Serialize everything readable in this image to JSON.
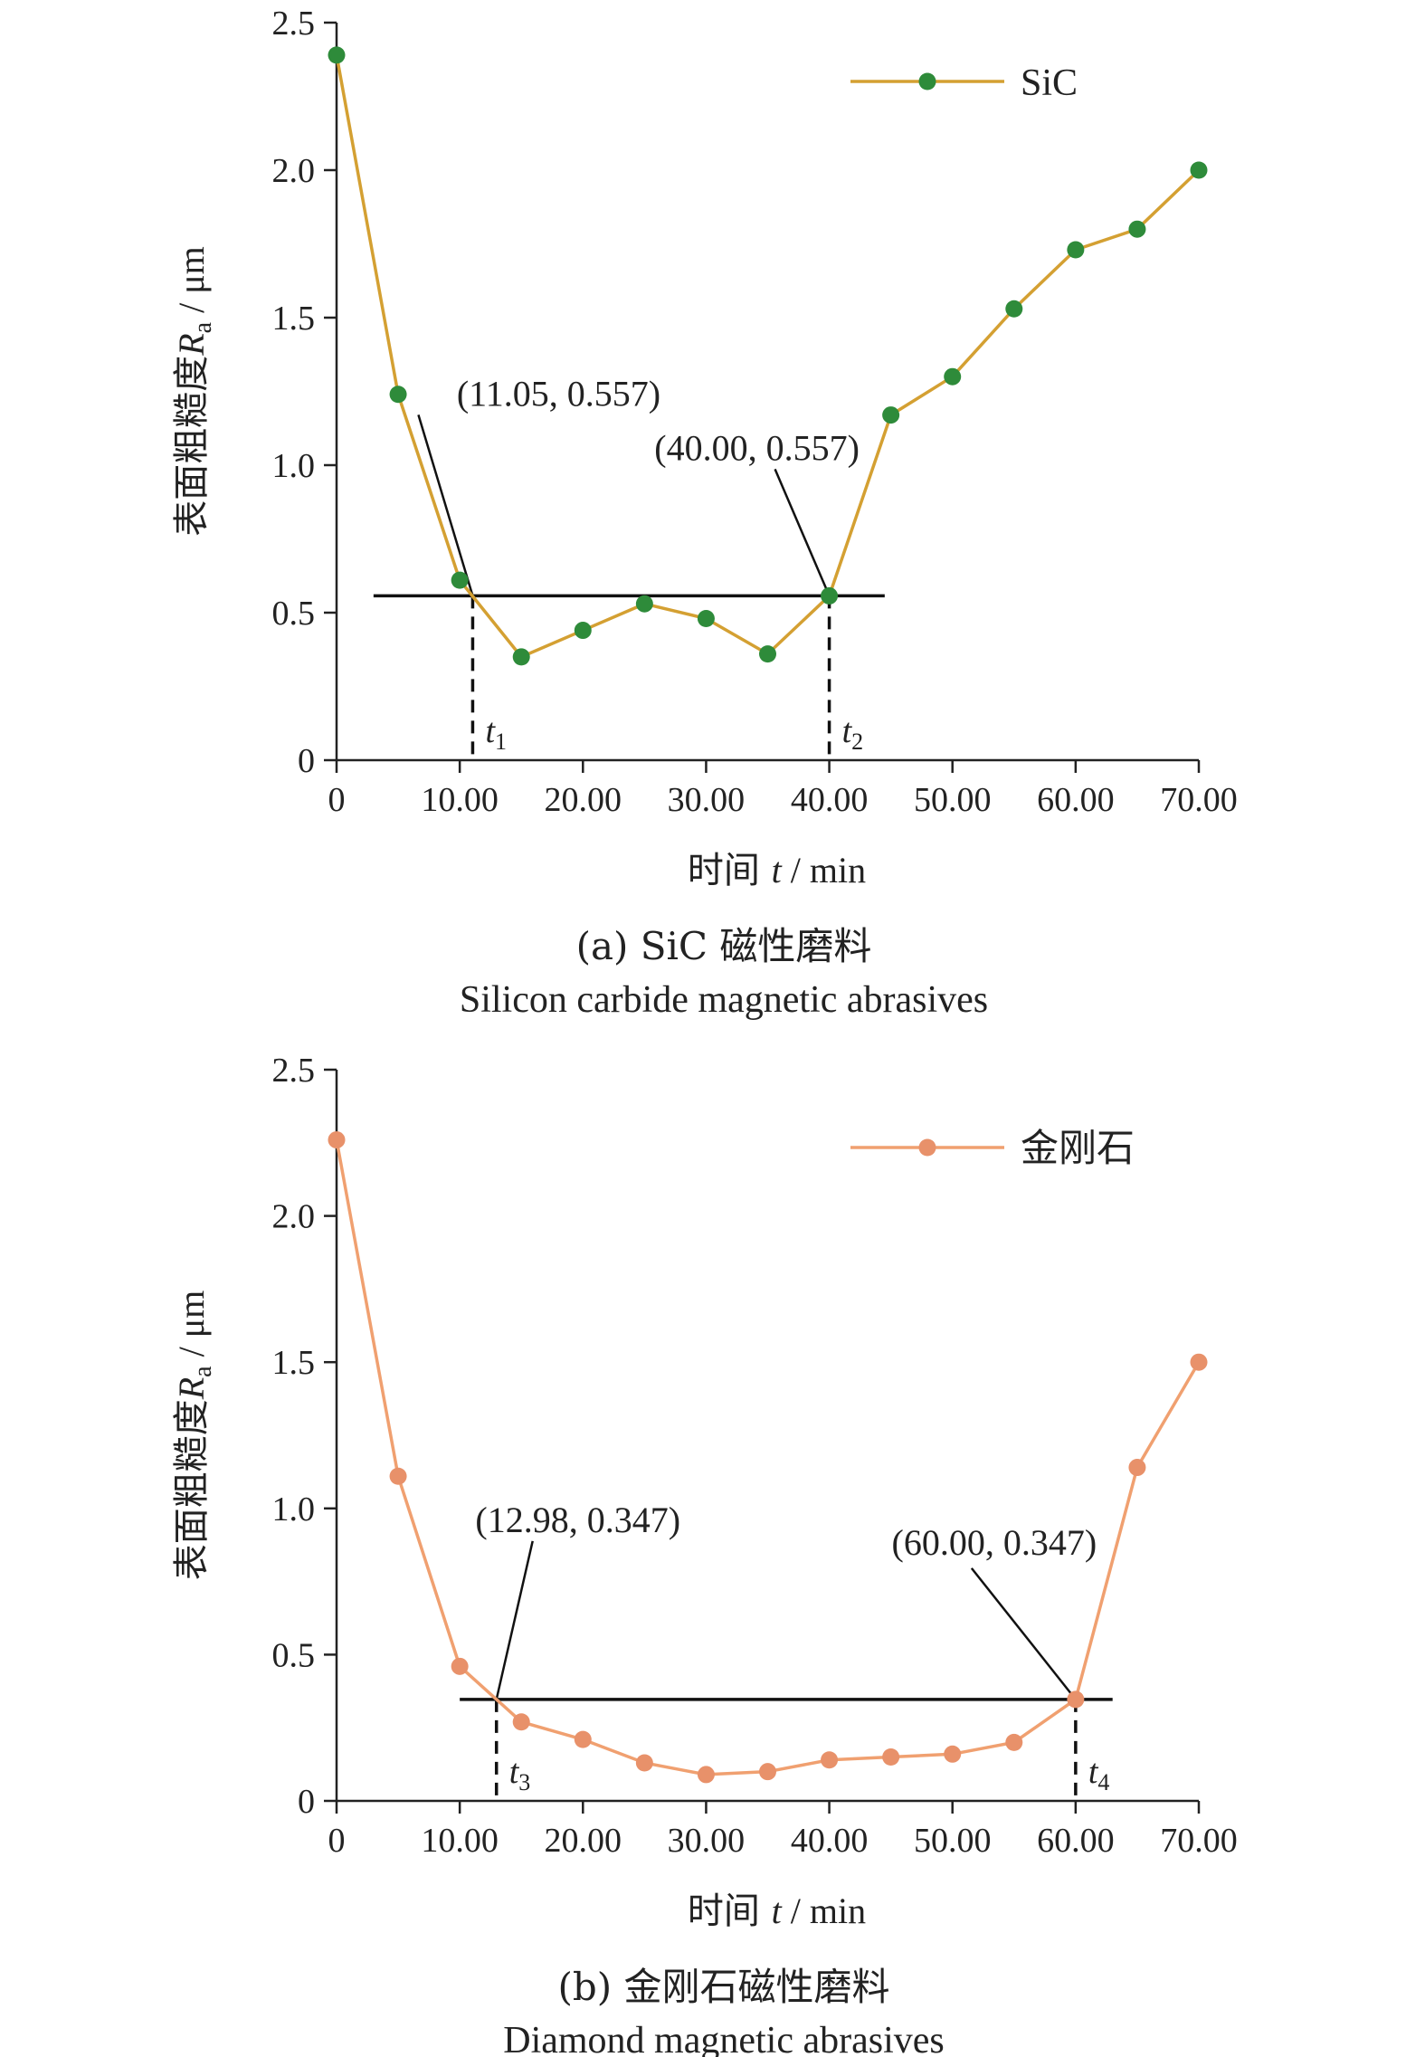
{
  "chart_data": [
    {
      "type": "line",
      "panel": "a",
      "xlabel_prefix": "时间 ",
      "xlabel_var": "t",
      "xlabel_unit": " / min",
      "ylabel_prefix": "表面粗糙度",
      "ylabel_var": "R",
      "ylabel_sub": "a",
      "ylabel_unit": " / μm",
      "xlim": [
        0,
        70
      ],
      "ylim": [
        0,
        2.5
      ],
      "x_tick_values": [
        0,
        10,
        20,
        30,
        40,
        50,
        60,
        70
      ],
      "x_tick_labels": [
        "0",
        "10.00",
        "20.00",
        "30.00",
        "40.00",
        "50.00",
        "60.00",
        "70.00"
      ],
      "y_tick_values": [
        0,
        0.5,
        1.0,
        1.5,
        2.0,
        2.5
      ],
      "y_tick_labels": [
        "0",
        "0.5",
        "1.0",
        "1.5",
        "2.0",
        "2.5"
      ],
      "legend_position": "top-right",
      "series": [
        {
          "name": "SiC",
          "line_color": "#d4a032",
          "marker_color": "#2e8b3a",
          "x": [
            0,
            5,
            10,
            15,
            20,
            25,
            30,
            35,
            40,
            45,
            50,
            55,
            60,
            65,
            70
          ],
          "y": [
            2.39,
            1.24,
            0.61,
            0.35,
            0.44,
            0.53,
            0.48,
            0.36,
            0.557,
            1.17,
            1.3,
            1.53,
            1.73,
            1.8,
            2.0
          ]
        }
      ],
      "threshold": {
        "y": 0.557,
        "x_start": 3,
        "x_end": 44.5
      },
      "markers": [
        {
          "x": 11.05,
          "y": 0.557,
          "label": "(11.05, 0.557)",
          "t_main": "t",
          "t_sub": "1"
        },
        {
          "x": 40.0,
          "y": 0.557,
          "label": "(40.00, 0.557)",
          "t_main": "t",
          "t_sub": "2"
        }
      ],
      "caption_line1": "(a) SiC 磁性磨料",
      "caption_line2": "Silicon carbide magnetic abrasives"
    },
    {
      "type": "line",
      "panel": "b",
      "xlabel_prefix": "时间 ",
      "xlabel_var": "t",
      "xlabel_unit": " / min",
      "ylabel_prefix": "表面粗糙度",
      "ylabel_var": "R",
      "ylabel_sub": "a",
      "ylabel_unit": " / μm",
      "xlim": [
        0,
        70
      ],
      "ylim": [
        0,
        2.5
      ],
      "x_tick_values": [
        0,
        10,
        20,
        30,
        40,
        50,
        60,
        70
      ],
      "x_tick_labels": [
        "0",
        "10.00",
        "20.00",
        "30.00",
        "40.00",
        "50.00",
        "60.00",
        "70.00"
      ],
      "y_tick_values": [
        0,
        0.5,
        1.0,
        1.5,
        2.0,
        2.5
      ],
      "y_tick_labels": [
        "0",
        "0.5",
        "1.0",
        "1.5",
        "2.0",
        "2.5"
      ],
      "legend_position": "top-right",
      "series": [
        {
          "name": "金刚石",
          "line_color": "#f0a070",
          "marker_color": "#e8916a",
          "x": [
            0,
            5,
            10,
            15,
            20,
            25,
            30,
            35,
            40,
            45,
            50,
            55,
            60,
            65,
            70
          ],
          "y": [
            2.26,
            1.11,
            0.46,
            0.27,
            0.21,
            0.13,
            0.09,
            0.1,
            0.14,
            0.15,
            0.16,
            0.2,
            0.347,
            1.14,
            1.5
          ]
        }
      ],
      "threshold": {
        "y": 0.347,
        "x_start": 10,
        "x_end": 63
      },
      "markers": [
        {
          "x": 12.98,
          "y": 0.347,
          "label": "(12.98, 0.347)",
          "t_main": "t",
          "t_sub": "3"
        },
        {
          "x": 60.0,
          "y": 0.347,
          "label": "(60.00, 0.347)",
          "t_main": "t",
          "t_sub": "4"
        }
      ],
      "caption_line1": "(b) 金刚石磁性磨料",
      "caption_line2": "Diamond magnetic abrasives"
    }
  ]
}
